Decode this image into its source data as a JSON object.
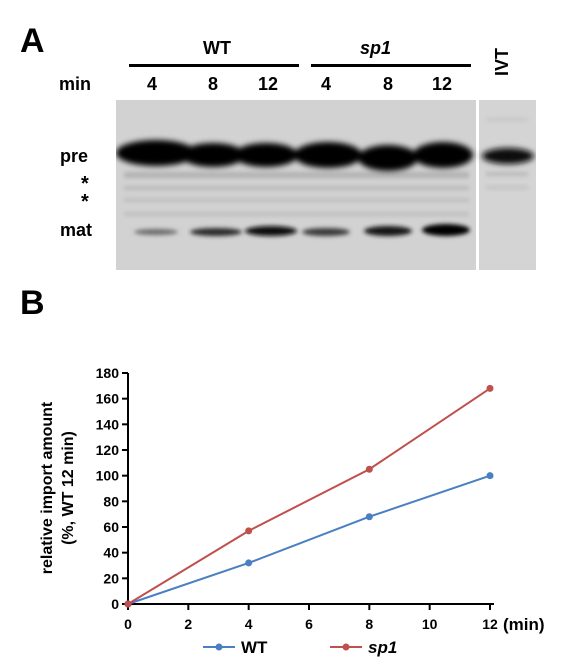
{
  "panelA": {
    "letter": "A",
    "group_labels": {
      "wt": "WT",
      "mutant": "sp1"
    },
    "time_label": "min",
    "lanes": [
      {
        "label": "4"
      },
      {
        "label": "8"
      },
      {
        "label": "12"
      },
      {
        "label": "4"
      },
      {
        "label": "8"
      },
      {
        "label": "12"
      }
    ],
    "ivt_label": "IVT",
    "band_labels": {
      "pre": "pre",
      "asterisk1": "*",
      "asterisk2": "*",
      "mat": "mat"
    },
    "colors": {
      "gel_background": "#d2d2d2",
      "band": "#050505"
    }
  },
  "panelB": {
    "letter": "B"
  },
  "chart_data": {
    "type": "line",
    "title": "",
    "ylabel_line1": "relative import amount",
    "ylabel_line2": "(%, WT 12 min)",
    "xunit": "(min)",
    "xlim": [
      0,
      12
    ],
    "ylim": [
      0,
      180
    ],
    "xticks": [
      "0",
      "2",
      "4",
      "6",
      "8",
      "10",
      "12"
    ],
    "yticks": [
      "0",
      "20",
      "40",
      "60",
      "80",
      "100",
      "120",
      "140",
      "160",
      "180"
    ],
    "grid": false,
    "legend_position": "bottom",
    "series": [
      {
        "name": "WT",
        "color": "#4a7fc1",
        "x": [
          0,
          4,
          8,
          12
        ],
        "y": [
          0,
          32,
          68,
          100
        ]
      },
      {
        "name": "sp1",
        "color": "#c0504d",
        "x": [
          0,
          4,
          8,
          12
        ],
        "y": [
          0,
          57,
          105,
          168
        ]
      }
    ]
  }
}
